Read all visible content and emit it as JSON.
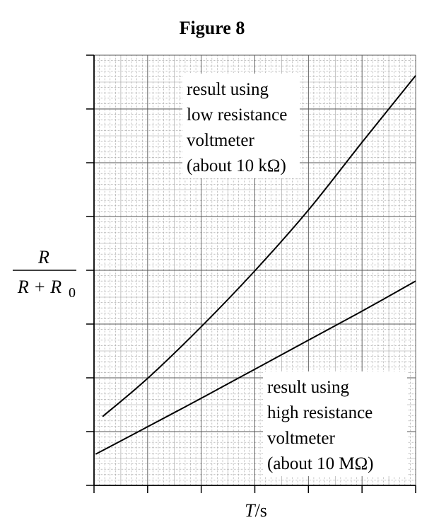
{
  "chart_data": {
    "type": "line",
    "title": "Figure 8",
    "xlabel": {
      "italic": "T",
      "rest": "/s"
    },
    "ylabel": {
      "numerator": "R",
      "denominator": "R + R",
      "subscript": "0"
    },
    "xlim": [
      0,
      6
    ],
    "ylim": [
      0,
      8
    ],
    "xticks": [
      0,
      1,
      2,
      3,
      4,
      5,
      6
    ],
    "yticks": [
      0,
      1,
      2,
      3,
      4,
      5,
      6,
      7,
      8
    ],
    "grid": true,
    "series": [
      {
        "x": [
          0.16,
          1,
          2,
          3,
          4,
          5,
          6
        ],
        "values": [
          1.28,
          1.99,
          2.95,
          3.99,
          5.12,
          6.38,
          7.62
        ],
        "color": "#000000",
        "annotation": [
          "result using",
          "low resistance",
          "voltmeter",
          "(about 10 kΩ)"
        ]
      },
      {
        "x": [
          0.03,
          1,
          2,
          3,
          4,
          5,
          6
        ],
        "values": [
          0.58,
          1.09,
          1.62,
          2.16,
          2.7,
          3.24,
          3.8
        ],
        "color": "#000000",
        "annotation": [
          "result using",
          "high resistance",
          "voltmeter",
          "(about 10 MΩ)"
        ]
      }
    ]
  }
}
